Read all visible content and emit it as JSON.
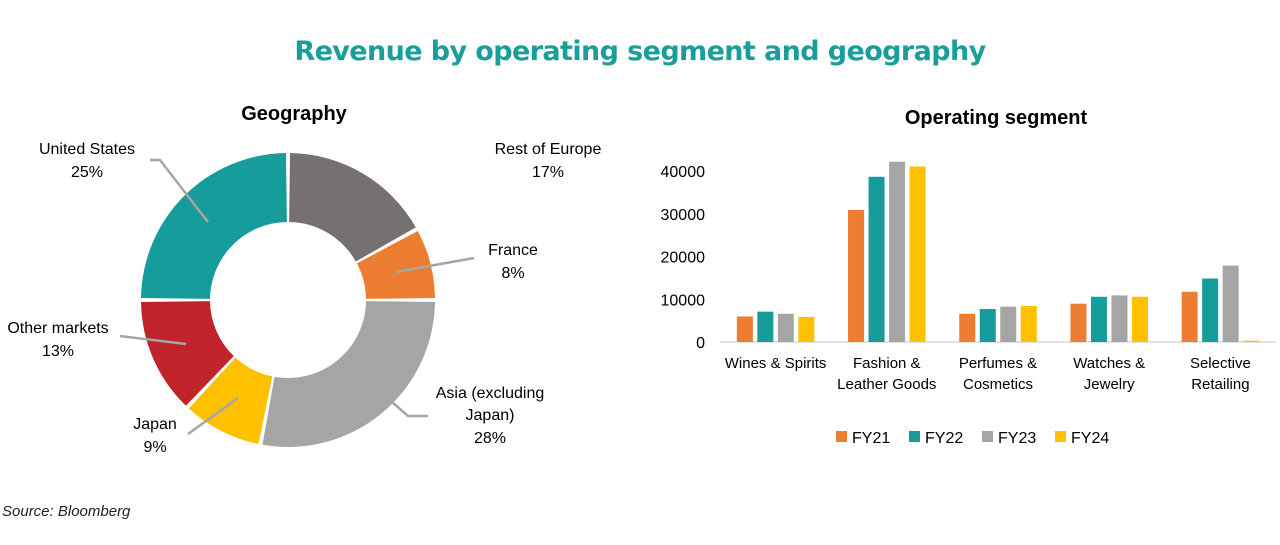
{
  "title": "Revenue by operating segment and geography",
  "source": "Source: Bloomberg",
  "colors": {
    "title": "#1a9e9a",
    "FY21": "#ed7d31",
    "FY22": "#169c9a",
    "FY23": "#a5a5a5",
    "FY24": "#ffc000"
  },
  "chart_data": [
    {
      "type": "pie",
      "variant": "donut",
      "title": "Geography",
      "slices": [
        {
          "name": "Rest of Europe",
          "label_lines": [
            "Rest of Europe"
          ],
          "percent_label": "17%",
          "value": 17,
          "color": "#767171"
        },
        {
          "name": "France",
          "label_lines": [
            "France"
          ],
          "percent_label": "8%",
          "value": 8,
          "color": "#ed7d31"
        },
        {
          "name": "Asia (excluding Japan)",
          "label_lines": [
            "Asia (excluding",
            "Japan)"
          ],
          "percent_label": "28%",
          "value": 28,
          "color": "#a5a5a5"
        },
        {
          "name": "Japan",
          "label_lines": [
            "Japan"
          ],
          "percent_label": "9%",
          "value": 9,
          "color": "#ffc000"
        },
        {
          "name": "Other markets",
          "label_lines": [
            "Other markets"
          ],
          "percent_label": "13%",
          "value": 13,
          "color": "#c0232a"
        },
        {
          "name": "United States",
          "label_lines": [
            "United States"
          ],
          "percent_label": "25%",
          "value": 25,
          "color": "#169c9a"
        }
      ]
    },
    {
      "type": "bar",
      "title": "Operating segment",
      "categories": [
        [
          "Wines & Spirits"
        ],
        [
          "Fashion &",
          "Leather Goods"
        ],
        [
          "Perfumes &",
          "Cosmetics"
        ],
        [
          "Watches &",
          "Jewelry"
        ],
        [
          "Selective",
          "Retailing"
        ]
      ],
      "series": [
        {
          "name": "FY21",
          "values": [
            5974,
            30896,
            6608,
            8964,
            11754
          ]
        },
        {
          "name": "FY22",
          "values": [
            7099,
            38648,
            7722,
            10581,
            14852
          ]
        },
        {
          "name": "FY23",
          "values": [
            6602,
            42169,
            8271,
            10902,
            17885
          ]
        },
        {
          "name": "FY24",
          "values": [
            5862,
            41060,
            8418,
            10577,
            300
          ]
        }
      ],
      "ylim": [
        0,
        45000
      ],
      "yticks": [
        0,
        10000,
        20000,
        30000,
        40000
      ],
      "xlabel": "",
      "ylabel": "",
      "legend": "bottom",
      "grid": false
    }
  ]
}
